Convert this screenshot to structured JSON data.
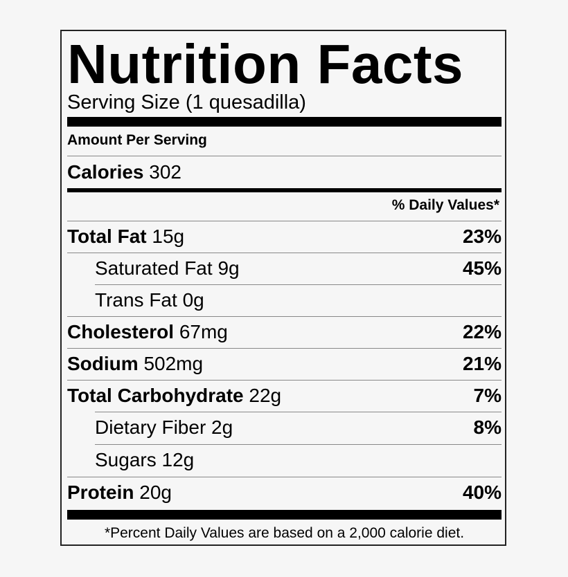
{
  "title": "Nutrition Facts",
  "serving_size": "Serving Size (1 quesadilla)",
  "amount_per_serving": "Amount Per Serving",
  "calories": {
    "label": "Calories",
    "value": "302"
  },
  "daily_values_header": "% Daily Values*",
  "nutrients": [
    {
      "name": "Total Fat",
      "amount": "15g",
      "percent": "23%"
    },
    {
      "name": "Saturated Fat",
      "amount": "9g",
      "percent": "45%"
    },
    {
      "name": "Trans Fat",
      "amount": "0g",
      "percent": ""
    },
    {
      "name": "Cholesterol",
      "amount": "67mg",
      "percent": "22%"
    },
    {
      "name": "Sodium",
      "amount": "502mg",
      "percent": "21%"
    },
    {
      "name": "Total Carbohydrate",
      "amount": "22g",
      "percent": "7%"
    },
    {
      "name": "Dietary Fiber",
      "amount": "2g",
      "percent": "8%"
    },
    {
      "name": "Sugars",
      "amount": "12g",
      "percent": ""
    },
    {
      "name": "Protein",
      "amount": "20g",
      "percent": "40%"
    }
  ],
  "footnote": "*Percent Daily Values are based on a 2,000 calorie diet."
}
